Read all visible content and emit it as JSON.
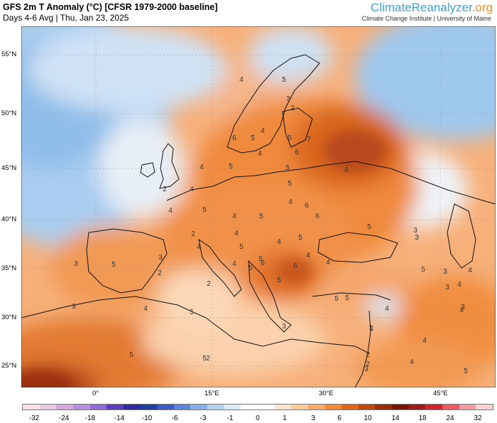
{
  "header": {
    "title": "GFS 2m T Anomaly (°C) [CFSR 1979-2000 baseline]",
    "subtitle": "Days 4-6 Avg | Thu, Jan 23, 2025"
  },
  "brand": {
    "name_main": "ClimateReanalyzer",
    "name_suffix": ".org",
    "affiliation": "Climate Change Institute | University of Maine"
  },
  "axes": {
    "lat_labels": [
      "55°N",
      "50°N",
      "45°N",
      "40°N",
      "35°N",
      "30°N",
      "25°N"
    ],
    "lon_labels": [
      "0°",
      "15°E",
      "30°E",
      "45°E"
    ]
  },
  "colorbar": {
    "ticks": [
      "-32",
      "-24",
      "-18",
      "-14",
      "-10",
      "-6",
      "-3",
      "-1",
      "0",
      "1",
      "3",
      "6",
      "10",
      "14",
      "18",
      "24",
      "32"
    ],
    "colors": [
      "#f9e2ec",
      "#ecc7e4",
      "#d6a8e0",
      "#b88ee0",
      "#8f6bd9",
      "#5b3fc2",
      "#2e2aa3",
      "#1d3fa1",
      "#3a5bc9",
      "#5b85dc",
      "#86b0ea",
      "#b4d3f3",
      "#dcebf9",
      "#ffffff",
      "#ffffff",
      "#fde6cf",
      "#fbcb9c",
      "#f9ab67",
      "#f48934",
      "#e46511",
      "#c44505",
      "#9b2b02",
      "#7a1700",
      "#a31a14",
      "#d1242a",
      "#ef5a62",
      "#f59aa0",
      "#fad2d4"
    ]
  },
  "isotherm_labels": [
    "4",
    "5",
    "3",
    "4",
    "2",
    "6",
    "5",
    "5",
    "6",
    "7",
    "5",
    "6",
    "4",
    "5",
    "4",
    "5",
    "4",
    "2",
    "4",
    "4",
    "5",
    "4",
    "5",
    "6",
    "5",
    "3",
    "2",
    "4",
    "4",
    "5",
    "5",
    "4",
    "6",
    "6",
    "5",
    "5",
    "4",
    "3",
    "3",
    "5",
    "3",
    "5",
    "4",
    "3",
    "4",
    "4",
    "2",
    "5",
    "5",
    "5",
    "3",
    "4",
    "4",
    "1",
    "2",
    "4",
    "5",
    "3",
    "6",
    "5",
    "2",
    "3",
    "5",
    "4",
    "3",
    "4",
    "4",
    "2",
    "1",
    "3",
    "5",
    "2"
  ],
  "colors": {
    "cold_blue": "#8cc0ee",
    "warm_orange": "#f08c3a",
    "hot_red": "#b24412",
    "brand_blue": "#3aa5d3",
    "brand_orange": "#f28c28"
  }
}
